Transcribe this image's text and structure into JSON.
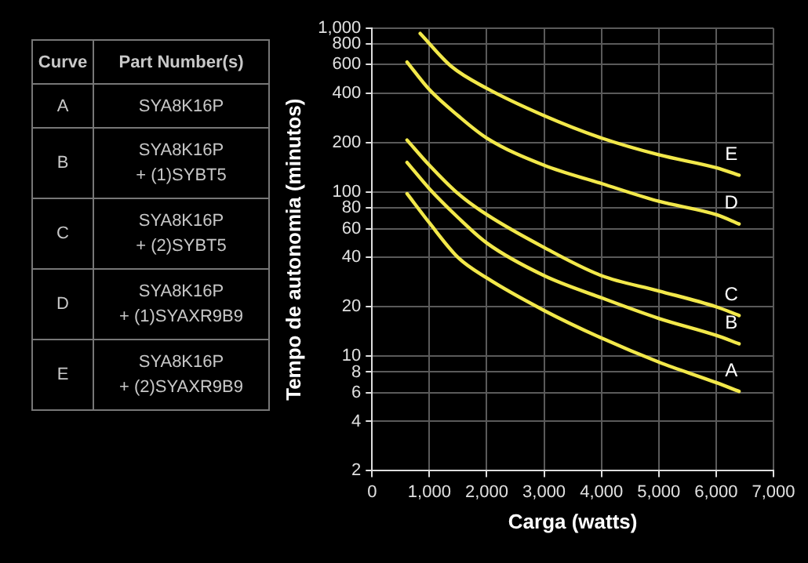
{
  "chart_data": [
    {
      "type": "other",
      "categories": [
        "Curve",
        "A",
        "B",
        "C",
        "D",
        "E"
      ],
      "annotations": [
        "Part Number(s)",
        "SYA8K16P",
        "SYA8K16P\n+ (1)SYBT5",
        "SYA8K16P\n+ (2)SYBT5",
        "SYA8K16P\n+ (1)SYAXR9B9",
        "SYA8K16P\n+ (2)SYAXR9B9"
      ]
    },
    {
      "type": "line",
      "xlabel": "Carga (watts)",
      "ylabel": "Tempo de autonomia (minutos)",
      "log": "y",
      "grid": true,
      "legend": false,
      "marker": "none",
      "line_style": "solid",
      "xlim": [
        0,
        7000
      ],
      "xticks": [
        0,
        {
          "value": 1000,
          "label": "1,000"
        },
        {
          "value": 2000,
          "label": "2,000"
        },
        {
          "value": 3000,
          "label": "3,000"
        },
        {
          "value": 4000,
          "label": "4,000"
        },
        {
          "value": 5000,
          "label": "5,000"
        },
        {
          "value": 6000,
          "label": "6,000"
        },
        {
          "value": 7000,
          "label": "7,000"
        }
      ],
      "ylim": [
        2,
        1000
      ],
      "yticks": [
        2,
        4,
        6,
        8,
        10,
        20,
        40,
        60,
        80,
        100,
        200,
        400,
        600,
        800,
        {
          "value": 1000,
          "label": "1,000"
        }
      ],
      "series": [
        {
          "name": "A",
          "color": "#f2e84a",
          "x": [
            610,
            1000,
            1500,
            2000,
            3000,
            4000,
            5000,
            6000,
            6400
          ],
          "values": [
            98,
            65,
            40,
            30,
            19,
            12.9,
            9.2,
            6.9,
            6.1
          ]
        },
        {
          "name": "B",
          "color": "#f2e84a",
          "x": [
            610,
            1000,
            1500,
            2000,
            3000,
            4000,
            5000,
            6000,
            6400
          ],
          "values": [
            152,
            105,
            70,
            49,
            31,
            22.7,
            17,
            13.4,
            11.9
          ]
        },
        {
          "name": "C",
          "color": "#f2e84a",
          "x": [
            610,
            1000,
            1500,
            2000,
            3000,
            4000,
            5000,
            6000,
            6400
          ],
          "values": [
            208,
            146,
            98,
            73,
            46,
            31,
            25,
            20,
            17.7
          ]
        },
        {
          "name": "D",
          "color": "#f2e84a",
          "x": [
            610,
            1000,
            1500,
            2000,
            3000,
            4000,
            5000,
            6000,
            6400
          ],
          "values": [
            622,
            422,
            293,
            214,
            146,
            113,
            88,
            73,
            64
          ]
        },
        {
          "name": "E",
          "color": "#f2e84a",
          "x": [
            840,
            1380,
            2000,
            3000,
            4000,
            5000,
            6000,
            6400
          ],
          "values": [
            929,
            586,
            430,
            293,
            214,
            169,
            141,
            127
          ]
        }
      ]
    }
  ]
}
